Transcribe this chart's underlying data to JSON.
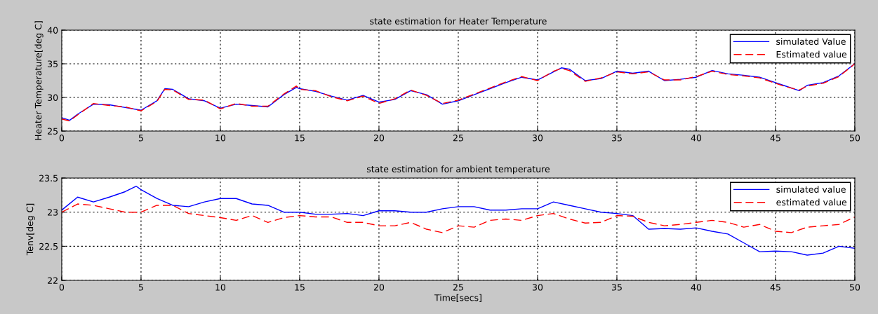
{
  "chart_data": [
    {
      "type": "line",
      "title": "state estimation for Heater Temperature",
      "ylabel": "Heater Temperature[deg C]",
      "x": [
        0,
        0.5,
        1,
        2,
        3,
        4,
        5,
        6,
        6.5,
        7,
        8,
        9,
        10,
        11,
        12,
        13,
        14,
        14.8,
        15,
        16,
        17,
        18,
        19,
        20,
        21,
        22,
        23,
        24,
        25,
        26,
        27,
        28,
        29,
        30,
        31,
        31.5,
        32,
        33,
        34,
        35,
        36,
        37,
        38,
        39,
        40,
        41,
        42,
        43,
        44,
        45,
        45.5,
        46.5,
        47,
        48,
        49,
        50
      ],
      "xlim": [
        0,
        50
      ],
      "xticks": [
        0,
        5,
        10,
        15,
        20,
        25,
        30,
        35,
        40,
        45,
        50
      ],
      "ylim": [
        25,
        40
      ],
      "yticks": [
        25,
        30,
        35,
        40
      ],
      "grid": true,
      "legend": "top right",
      "series": [
        {
          "name": "simulated Value",
          "color": "#0000ff",
          "line_style": "solid",
          "values": [
            27.0,
            26.6,
            27.5,
            29.0,
            28.9,
            28.5,
            28.1,
            29.5,
            31.3,
            31.2,
            29.8,
            29.5,
            28.4,
            29.0,
            28.8,
            28.6,
            30.4,
            31.5,
            31.3,
            30.9,
            30.2,
            29.6,
            30.3,
            29.3,
            29.7,
            31.0,
            30.4,
            29.0,
            29.5,
            30.4,
            31.3,
            32.2,
            33.0,
            32.6,
            33.8,
            34.4,
            34.2,
            32.5,
            32.8,
            33.9,
            33.6,
            33.9,
            32.5,
            32.7,
            33.0,
            34.0,
            33.5,
            33.3,
            33.0,
            32.2,
            31.8,
            31.0,
            31.8,
            32.2,
            33.2,
            35.0
          ]
        },
        {
          "name": "Estimated value",
          "color": "#ff0000",
          "line_style": "dashed",
          "values": [
            26.8,
            26.5,
            27.4,
            29.1,
            28.8,
            28.6,
            28.0,
            29.4,
            31.2,
            31.1,
            29.7,
            29.6,
            28.3,
            29.1,
            28.7,
            28.7,
            30.5,
            31.7,
            31.2,
            31.0,
            30.1,
            29.5,
            30.2,
            29.1,
            29.8,
            31.1,
            30.3,
            29.1,
            29.6,
            30.5,
            31.4,
            32.3,
            33.1,
            32.5,
            33.9,
            34.3,
            34.0,
            32.4,
            32.9,
            33.8,
            33.5,
            33.8,
            32.6,
            32.6,
            33.1,
            33.9,
            33.4,
            33.2,
            32.9,
            32.1,
            31.7,
            31.1,
            31.7,
            32.1,
            33.1,
            35.0
          ]
        }
      ]
    },
    {
      "type": "line",
      "title": "state estimation for ambient temperature",
      "ylabel": "Tenv[deg C]",
      "xlabel": "Time[secs]",
      "x": [
        0,
        1,
        2,
        3,
        4,
        4.7,
        5,
        6,
        7,
        8,
        9,
        10,
        11,
        12,
        13,
        14,
        15,
        16,
        17,
        18,
        19,
        20,
        21,
        22,
        23,
        24,
        25,
        26,
        27,
        28,
        29,
        30,
        31,
        32,
        33,
        34,
        35,
        36,
        37,
        38,
        39,
        40,
        41,
        42,
        43,
        44,
        45,
        46,
        47,
        48,
        49,
        50
      ],
      "xlim": [
        0,
        50
      ],
      "xticks": [
        0,
        5,
        10,
        15,
        20,
        25,
        30,
        35,
        40,
        45,
        50
      ],
      "ylim": [
        22,
        23.5
      ],
      "yticks": [
        22,
        22.5,
        23,
        23.5
      ],
      "grid": true,
      "legend": "top right",
      "series": [
        {
          "name": "simulated value",
          "color": "#0000ff",
          "line_style": "solid",
          "values": [
            23.03,
            23.22,
            23.15,
            23.22,
            23.3,
            23.38,
            23.33,
            23.2,
            23.1,
            23.08,
            23.15,
            23.2,
            23.2,
            23.12,
            23.1,
            23.0,
            23.0,
            22.97,
            22.97,
            22.98,
            22.95,
            23.02,
            23.02,
            23.0,
            23.0,
            23.05,
            23.08,
            23.08,
            23.03,
            23.03,
            23.05,
            23.05,
            23.15,
            23.1,
            23.05,
            23.0,
            22.98,
            22.95,
            22.75,
            22.76,
            22.75,
            22.77,
            22.72,
            22.68,
            22.55,
            22.42,
            22.43,
            22.42,
            22.37,
            22.4,
            22.5,
            22.47
          ]
        },
        {
          "name": "estimated value",
          "color": "#ff0000",
          "line_style": "dashed",
          "values": [
            23.0,
            23.12,
            23.1,
            23.05,
            23.0,
            23.0,
            23.0,
            23.1,
            23.1,
            22.98,
            22.95,
            22.92,
            22.88,
            22.95,
            22.85,
            22.92,
            22.95,
            22.93,
            22.93,
            22.85,
            22.85,
            22.8,
            22.8,
            22.85,
            22.75,
            22.7,
            22.8,
            22.78,
            22.88,
            22.9,
            22.88,
            22.95,
            22.98,
            22.9,
            22.84,
            22.85,
            22.95,
            22.94,
            22.85,
            22.8,
            22.82,
            22.85,
            22.88,
            22.85,
            22.78,
            22.82,
            22.72,
            22.7,
            22.78,
            22.8,
            22.82,
            22.93
          ]
        }
      ]
    }
  ]
}
